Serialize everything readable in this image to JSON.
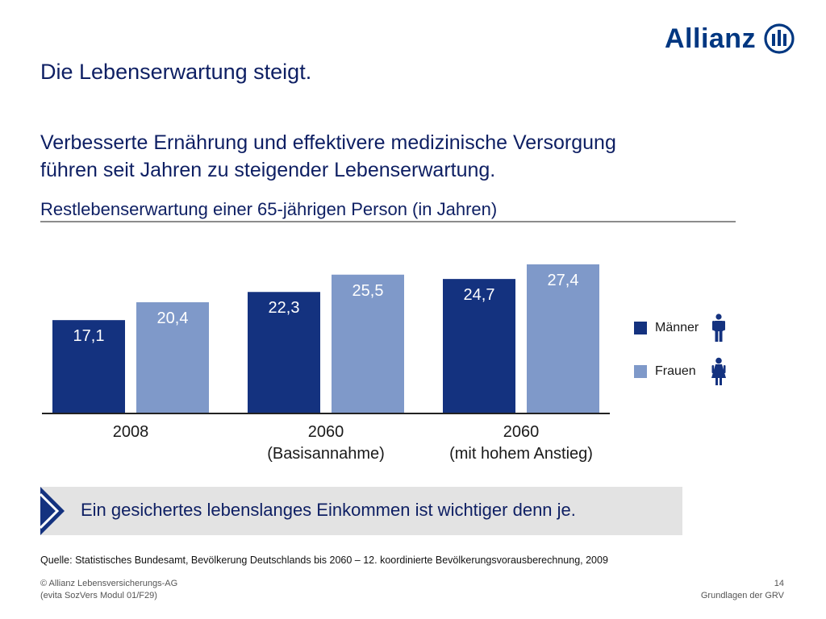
{
  "brand": {
    "name": "Allianz",
    "color": "#003781"
  },
  "page_title": "Die Lebenserwartung steigt.",
  "subtitle_lines": [
    "Verbesserte Ernährung und effektivere medizinische Versorgung",
    "führen seit Jahren zu steigender Lebenserwartung."
  ],
  "colors": {
    "maenner": "#14327f",
    "frauen": "#7f99c9",
    "label_dark": "#ffffff",
    "label_light": "#ffffff"
  },
  "chart_data": {
    "type": "bar",
    "title": "Restlebenserwartung einer 65-jährigen Person (in Jahren)",
    "categories": [
      [
        "2008"
      ],
      [
        "2060",
        "(Basisannahme)"
      ],
      [
        "2060",
        "(mit hohem Anstieg)"
      ]
    ],
    "series": [
      {
        "name": "Männer",
        "values": [
          17.1,
          22.3,
          24.7
        ],
        "labels": [
          "17,1",
          "22,3",
          "24,7"
        ],
        "color": "#14327f",
        "icon": "man-icon"
      },
      {
        "name": "Frauen",
        "values": [
          20.4,
          25.5,
          27.4
        ],
        "labels": [
          "20,4",
          "25,5",
          "27,4"
        ],
        "color": "#7f99c9",
        "icon": "woman-icon"
      }
    ],
    "ylim": [
      0,
      27.4
    ],
    "grid": false,
    "legend_position": "right"
  },
  "callout": {
    "text": "Ein gesichertes lebenslanges Einkommen ist wichtiger denn je.",
    "icon": "chevron-right-icon"
  },
  "source": "Quelle: Statistisches Bundesamt, Bevölkerung Deutschlands bis 2060 – 12. koordinierte Bevölkerungsvorausberechnung, 2009",
  "footer": {
    "copyright": "© Allianz Lebensversicherungs-AG",
    "module": "(evita SozVers Modul 01/F29)",
    "page_number": "14",
    "section": "Grundlagen der GRV"
  }
}
